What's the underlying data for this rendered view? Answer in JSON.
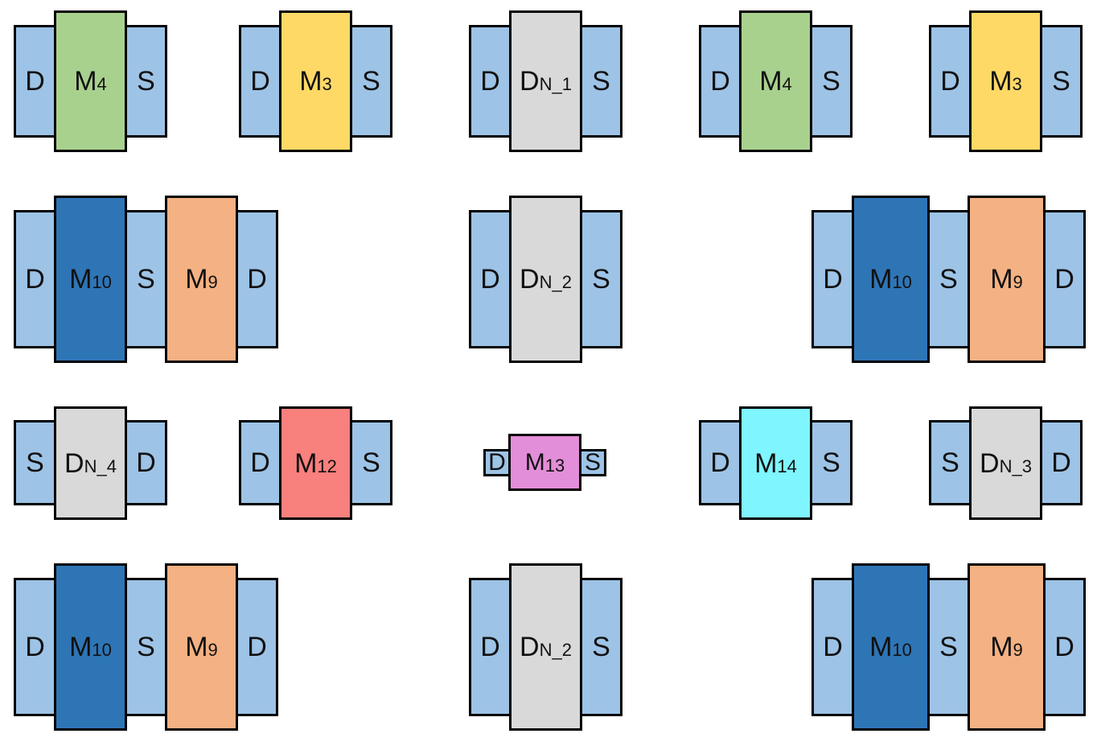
{
  "colors": {
    "terminal": "#9dc3e6",
    "green": "#a9d18e",
    "yellow": "#ffd966",
    "gray": "#d9d9d9",
    "blue": "#2e75b6",
    "orange": "#f4b183",
    "red": "#f8807d",
    "pink": "#e38ed8",
    "cyan": "#7ff5ff",
    "border": "#000000"
  },
  "devices": [
    {
      "id": "m4-a",
      "terms": [
        "D",
        "S"
      ],
      "gates": [
        {
          "main": "M",
          "sub": "4",
          "color": "green"
        }
      ]
    },
    {
      "id": "m3-a",
      "terms": [
        "D",
        "S"
      ],
      "gates": [
        {
          "main": "M",
          "sub": "3",
          "color": "yellow"
        }
      ]
    },
    {
      "id": "dn1",
      "terms": [
        "D",
        "S"
      ],
      "gates": [
        {
          "main": "D",
          "sub": "N_1",
          "color": "gray"
        }
      ]
    },
    {
      "id": "m4-b",
      "terms": [
        "D",
        "S"
      ],
      "gates": [
        {
          "main": "M",
          "sub": "4",
          "color": "green"
        }
      ]
    },
    {
      "id": "m3-b",
      "terms": [
        "D",
        "S"
      ],
      "gates": [
        {
          "main": "M",
          "sub": "3",
          "color": "yellow"
        }
      ]
    },
    {
      "id": "m10m9-a",
      "terms": [
        "D",
        "S",
        "D"
      ],
      "gates": [
        {
          "main": "M",
          "sub": "10",
          "color": "blue"
        },
        {
          "main": "M",
          "sub": "9",
          "color": "orange"
        }
      ]
    },
    {
      "id": "dn2-a",
      "terms": [
        "D",
        "S"
      ],
      "gates": [
        {
          "main": "D",
          "sub": "N_2",
          "color": "gray"
        }
      ]
    },
    {
      "id": "m10m9-b",
      "terms": [
        "D",
        "S",
        "D"
      ],
      "gates": [
        {
          "main": "M",
          "sub": "10",
          "color": "blue"
        },
        {
          "main": "M",
          "sub": "9",
          "color": "orange"
        }
      ]
    },
    {
      "id": "dn4",
      "terms": [
        "S",
        "D"
      ],
      "gates": [
        {
          "main": "D",
          "sub": "N_4",
          "color": "gray"
        }
      ]
    },
    {
      "id": "m12",
      "terms": [
        "D",
        "S"
      ],
      "gates": [
        {
          "main": "M",
          "sub": "12",
          "color": "red"
        }
      ]
    },
    {
      "id": "m13",
      "terms": [
        "D",
        "S"
      ],
      "gates": [
        {
          "main": "M",
          "sub": "13",
          "color": "pink"
        }
      ]
    },
    {
      "id": "m14",
      "terms": [
        "D",
        "S"
      ],
      "gates": [
        {
          "main": "M",
          "sub": "14",
          "color": "cyan"
        }
      ]
    },
    {
      "id": "dn3",
      "terms": [
        "S",
        "D"
      ],
      "gates": [
        {
          "main": "D",
          "sub": "N_3",
          "color": "gray"
        }
      ]
    },
    {
      "id": "m10m9-c",
      "terms": [
        "D",
        "S",
        "D"
      ],
      "gates": [
        {
          "main": "M",
          "sub": "10",
          "color": "blue"
        },
        {
          "main": "M",
          "sub": "9",
          "color": "orange"
        }
      ]
    },
    {
      "id": "dn2-b",
      "terms": [
        "D",
        "S"
      ],
      "gates": [
        {
          "main": "D",
          "sub": "N_2",
          "color": "gray"
        }
      ]
    },
    {
      "id": "m10m9-d",
      "terms": [
        "D",
        "S",
        "D"
      ],
      "gates": [
        {
          "main": "M",
          "sub": "10",
          "color": "blue"
        },
        {
          "main": "M",
          "sub": "9",
          "color": "orange"
        }
      ]
    }
  ]
}
